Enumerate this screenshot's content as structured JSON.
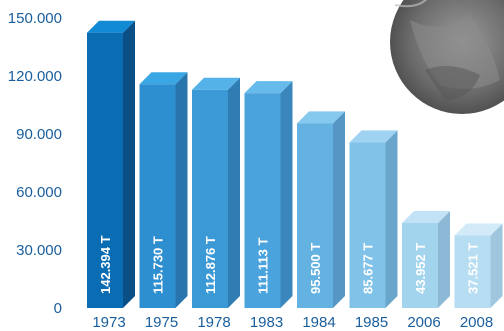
{
  "chart_data": {
    "type": "bar",
    "categories": [
      "1973",
      "1975",
      "1978",
      "1983",
      "1984",
      "1985",
      "2006",
      "2008"
    ],
    "values": [
      142394,
      115730,
      112876,
      111113,
      95500,
      85677,
      43952,
      37521
    ],
    "data_labels": [
      "142.394 T",
      "115.730 T",
      "112.876 T",
      "111.113 T",
      "95.500 T",
      "85.677 T",
      "43.952 T",
      "37.521 T"
    ],
    "y_ticks": [
      "0",
      "30.000",
      "60.000",
      "90.000",
      "120.000",
      "150.000"
    ],
    "y_tick_values": [
      0,
      30000,
      60000,
      90000,
      120000,
      150000
    ],
    "ylim": [
      0,
      150000
    ],
    "grid": false,
    "bar_colors": {
      "front": [
        "#0a6cb3",
        "#2e8fd0",
        "#3b99d6",
        "#4aa3dc",
        "#63b2e2",
        "#80c2e8",
        "#a3d4ee",
        "#b7ddf2"
      ],
      "top": [
        "#138ad4",
        "#3aa6e4",
        "#55b2e8",
        "#66bbea",
        "#86c9ef",
        "#a0d3f2",
        "#c2e3f6",
        "#d3ebf8"
      ],
      "side": [
        "#0a4f85",
        "#2775ac",
        "#2f7db3",
        "#3b87bb",
        "#5596c4",
        "#6aa6cc",
        "#8db8d6",
        "#a0c6de"
      ]
    },
    "text_color": "#1a5e9c"
  }
}
